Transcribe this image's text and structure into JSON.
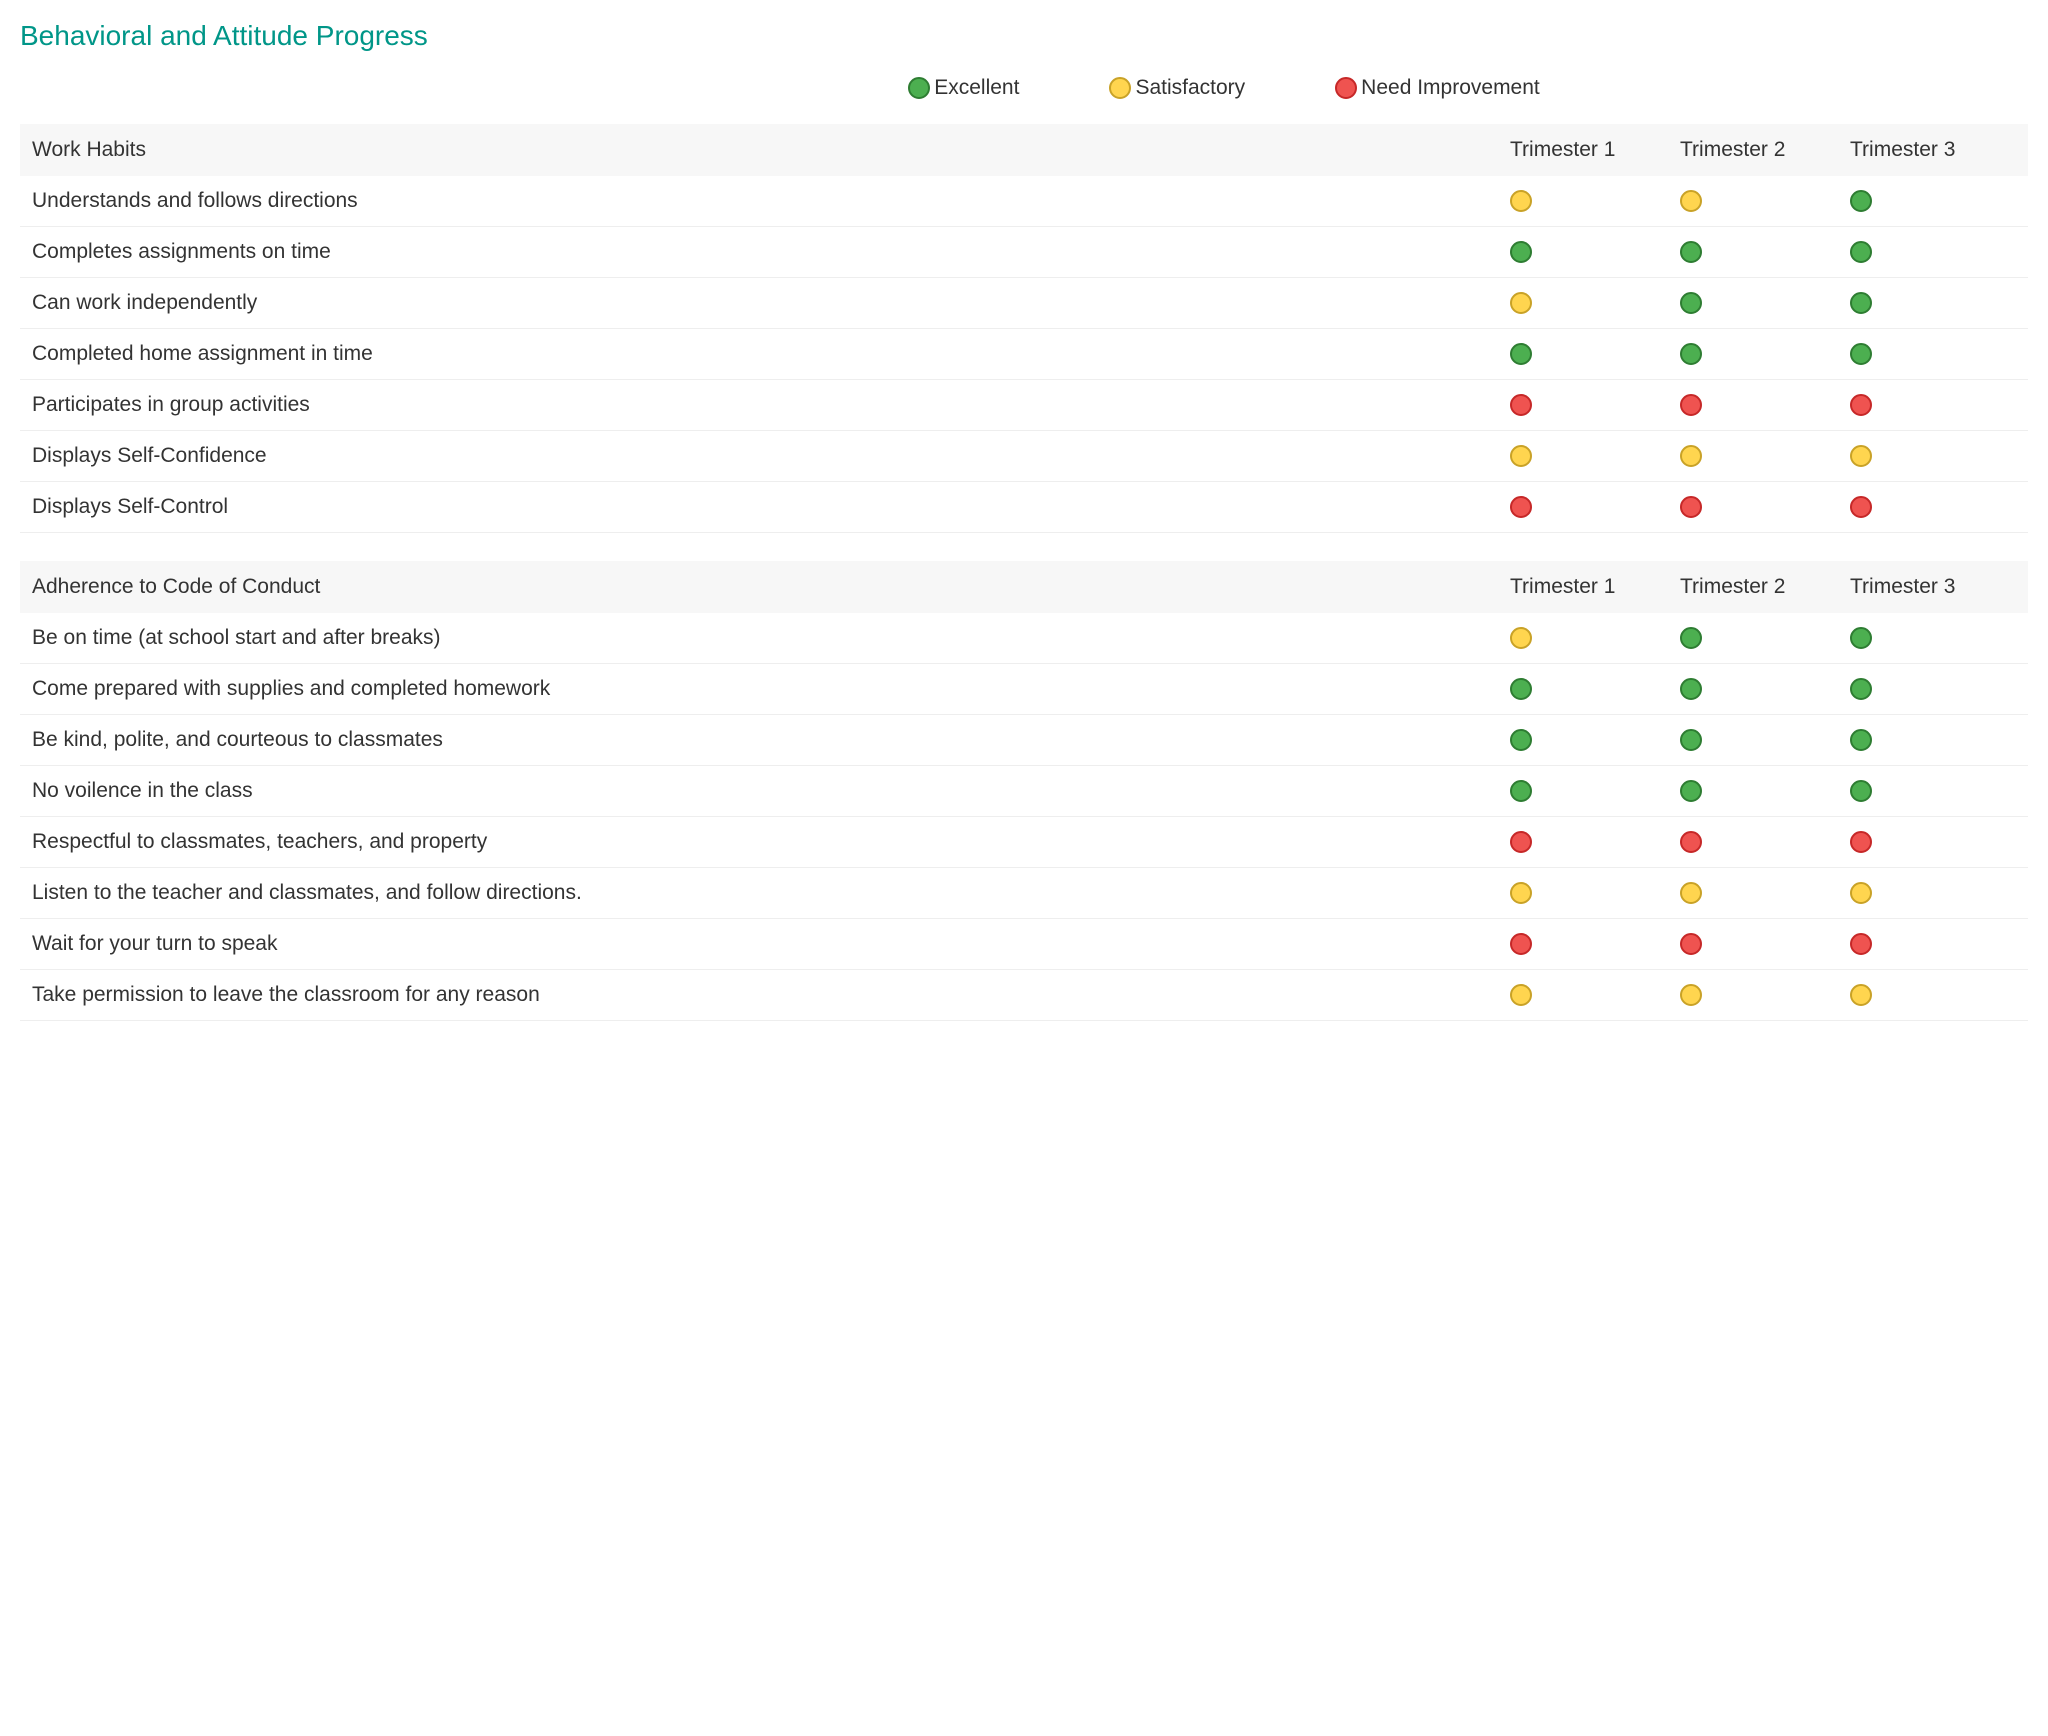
{
  "title": "Behavioral and Attitude Progress",
  "colors": {
    "title": "#009688",
    "text": "#333333",
    "headerBg": "#f7f7f7",
    "rowBorder": "#eeeeee"
  },
  "dotStyle": {
    "sizePx": 22,
    "excellent": {
      "fill": "#4caf50",
      "stroke": "#2e7d32"
    },
    "satisfactory": {
      "fill": "#ffd54f",
      "stroke": "#c9a227"
    },
    "need_improvement": {
      "fill": "#ef5350",
      "stroke": "#c62828"
    }
  },
  "legend": [
    {
      "key": "excellent",
      "label": "Excellent"
    },
    {
      "key": "satisfactory",
      "label": "Satisfactory"
    },
    {
      "key": "need_improvement",
      "label": "Need Improvement"
    }
  ],
  "trimesterLabels": [
    "Trimester 1",
    "Trimester 2",
    "Trimester 3"
  ],
  "sections": [
    {
      "title": "Work Habits",
      "rows": [
        {
          "label": "Understands and follows directions",
          "values": [
            "satisfactory",
            "satisfactory",
            "excellent"
          ]
        },
        {
          "label": "Completes assignments on time",
          "values": [
            "excellent",
            "excellent",
            "excellent"
          ]
        },
        {
          "label": "Can work independently",
          "values": [
            "satisfactory",
            "excellent",
            "excellent"
          ]
        },
        {
          "label": "Completed home assignment in time",
          "values": [
            "excellent",
            "excellent",
            "excellent"
          ]
        },
        {
          "label": "Participates in group activities",
          "values": [
            "need_improvement",
            "need_improvement",
            "need_improvement"
          ]
        },
        {
          "label": "Displays Self-Confidence",
          "values": [
            "satisfactory",
            "satisfactory",
            "satisfactory"
          ]
        },
        {
          "label": "Displays Self-Control",
          "values": [
            "need_improvement",
            "need_improvement",
            "need_improvement"
          ]
        }
      ]
    },
    {
      "title": "Adherence to Code of Conduct",
      "rows": [
        {
          "label": "Be on time (at school start and after breaks)",
          "values": [
            "satisfactory",
            "excellent",
            "excellent"
          ]
        },
        {
          "label": "Come prepared with supplies and completed homework",
          "values": [
            "excellent",
            "excellent",
            "excellent"
          ]
        },
        {
          "label": "Be kind, polite, and courteous to classmates",
          "values": [
            "excellent",
            "excellent",
            "excellent"
          ]
        },
        {
          "label": "No voilence in the class",
          "values": [
            "excellent",
            "excellent",
            "excellent"
          ]
        },
        {
          "label": "Respectful to classmates, teachers, and property",
          "values": [
            "need_improvement",
            "need_improvement",
            "need_improvement"
          ]
        },
        {
          "label": "Listen to the teacher and classmates, and follow directions.",
          "values": [
            "satisfactory",
            "satisfactory",
            "satisfactory"
          ]
        },
        {
          "label": "Wait for your turn to speak",
          "values": [
            "need_improvement",
            "need_improvement",
            "need_improvement"
          ]
        },
        {
          "label": "Take permission to leave the classroom for any reason",
          "values": [
            "satisfactory",
            "satisfactory",
            "satisfactory"
          ]
        }
      ]
    }
  ]
}
